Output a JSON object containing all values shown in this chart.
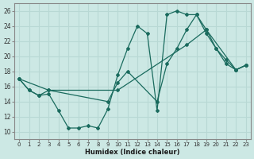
{
  "xlabel": "Humidex (Indice chaleur)",
  "bg_color": "#cce8e4",
  "line_color": "#1a6b5e",
  "grid_color": "#b8d8d4",
  "xlim": [
    -0.5,
    23.5
  ],
  "ylim": [
    9,
    27
  ],
  "yticks": [
    10,
    12,
    14,
    16,
    18,
    20,
    22,
    24,
    26
  ],
  "xticks": [
    0,
    1,
    2,
    3,
    4,
    5,
    6,
    7,
    8,
    9,
    10,
    11,
    12,
    13,
    14,
    15,
    16,
    17,
    18,
    19,
    20,
    21,
    22,
    23
  ],
  "line1_x": [
    0,
    1,
    2,
    3,
    4,
    5,
    6,
    7,
    8,
    9,
    10,
    11,
    12,
    13,
    14,
    15,
    16,
    17,
    18,
    19,
    20,
    21,
    22,
    23
  ],
  "line1_y": [
    17.0,
    15.5,
    14.8,
    15.0,
    12.8,
    10.5,
    10.5,
    10.8,
    10.5,
    13.0,
    17.5,
    21.0,
    24.0,
    23.0,
    12.8,
    25.5,
    26.0,
    25.5,
    25.5,
    23.0,
    21.0,
    19.0,
    18.2,
    18.8
  ],
  "line2_x": [
    0,
    1,
    2,
    3,
    9,
    10,
    11,
    14,
    15,
    16,
    17,
    18,
    19,
    20,
    21,
    22,
    23
  ],
  "line2_y": [
    17.0,
    15.5,
    14.8,
    15.5,
    14.0,
    16.5,
    18.0,
    14.0,
    19.0,
    21.0,
    23.5,
    25.5,
    23.5,
    21.0,
    19.5,
    18.2,
    18.8
  ],
  "line3_x": [
    0,
    3,
    10,
    17,
    19,
    22,
    23
  ],
  "line3_y": [
    17.0,
    15.5,
    15.5,
    21.5,
    23.5,
    18.2,
    18.8
  ]
}
